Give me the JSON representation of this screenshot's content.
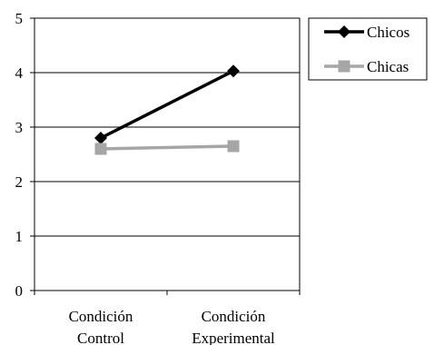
{
  "chart_data": {
    "type": "line",
    "categories": [
      [
        "Condición",
        "Control"
      ],
      [
        "Condición",
        "Experimental"
      ]
    ],
    "series": [
      {
        "name": "Chicos",
        "values": [
          2.8,
          4.03
        ],
        "color": "#000000",
        "marker": "diamond"
      },
      {
        "name": "Chicas",
        "values": [
          2.6,
          2.65
        ],
        "color": "#a6a6a6",
        "marker": "square"
      }
    ],
    "y_ticks": [
      "0",
      "1",
      "2",
      "3",
      "4",
      "5"
    ],
    "ylim": [
      0,
      5
    ],
    "grid": true,
    "legend_position": "top-right",
    "title": "",
    "xlabel": "",
    "ylabel": ""
  }
}
